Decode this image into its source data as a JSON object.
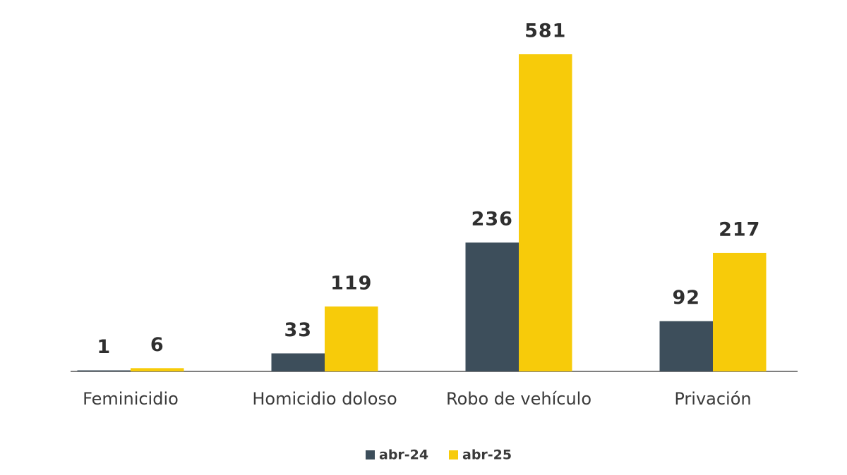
{
  "chart_data": {
    "type": "bar",
    "categories": [
      "Feminicidio",
      "Homicidio doloso",
      "Robo de vehículo",
      "Privación"
    ],
    "series": [
      {
        "name": "abr-24",
        "color": "#3d4e5b",
        "values": [
          1,
          33,
          236,
          92
        ]
      },
      {
        "name": "abr-25",
        "color": "#f7cb0a",
        "values": [
          6,
          119,
          581,
          217
        ]
      }
    ]
  }
}
